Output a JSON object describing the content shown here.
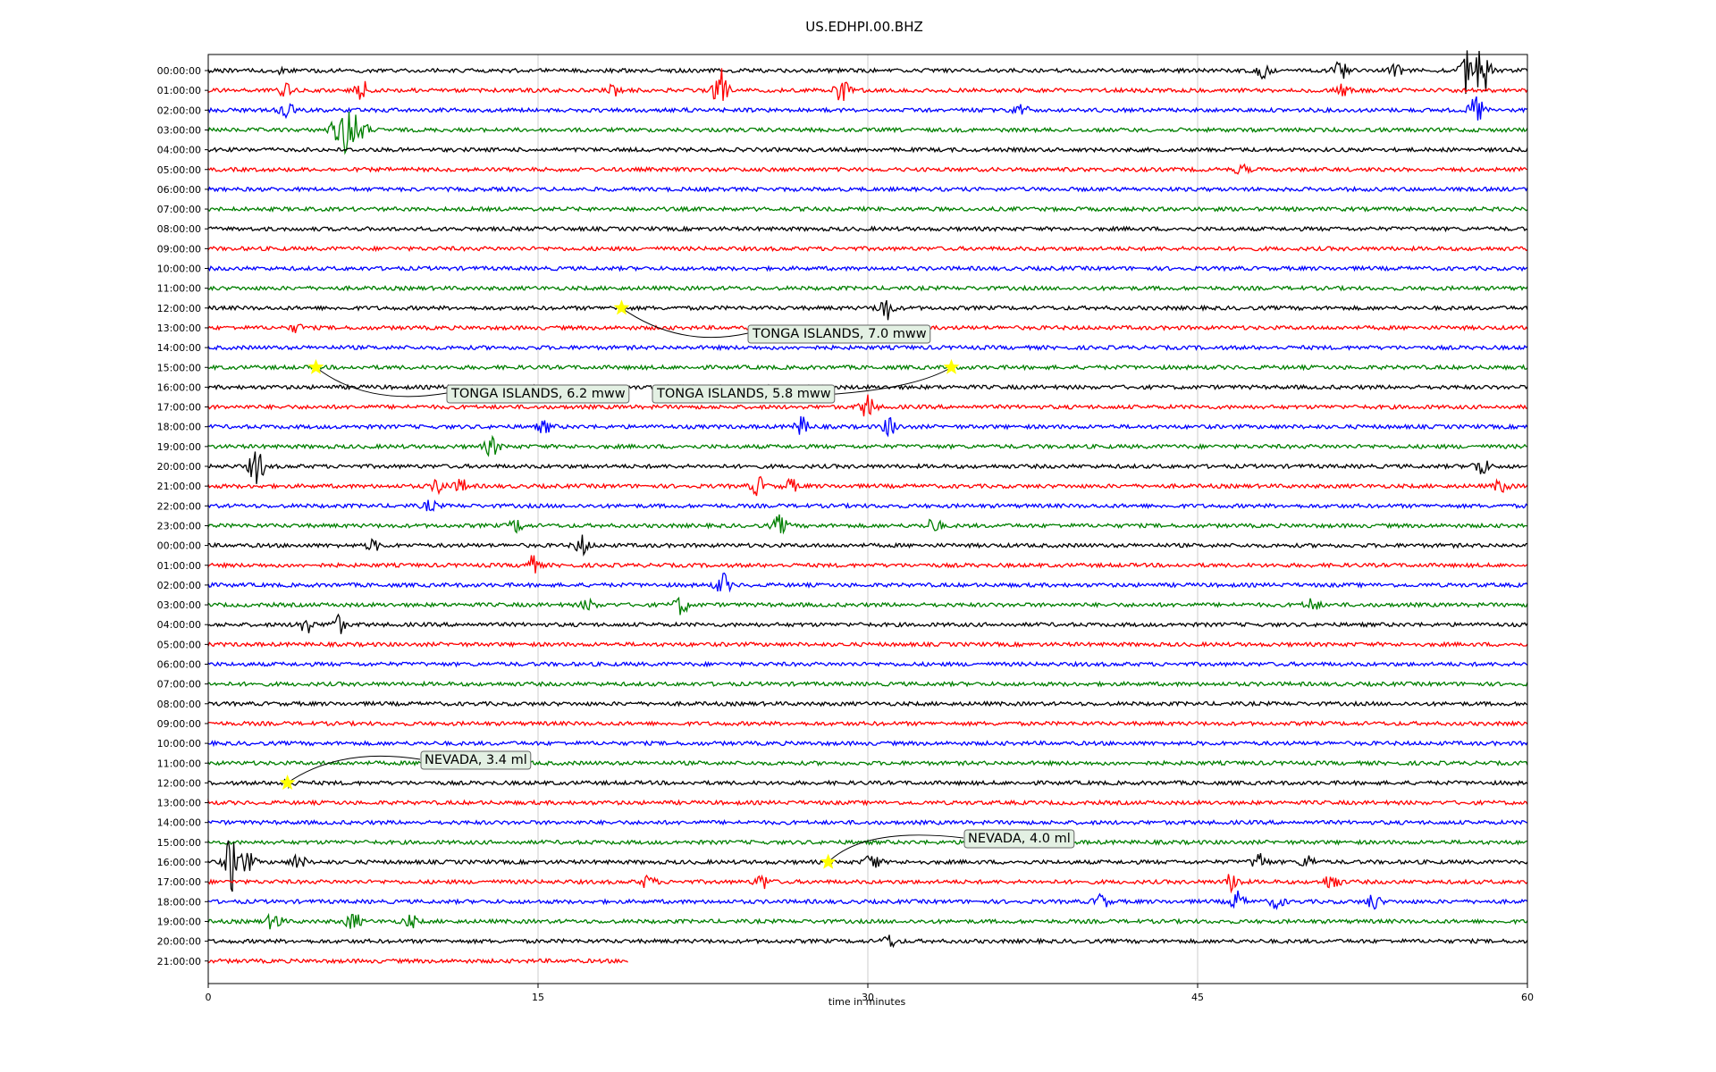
{
  "chart_data": {
    "type": "line",
    "title": "US.EDHPI.00.BHZ",
    "xlabel": "time in minutes",
    "ylabel": "",
    "xlim": [
      0,
      60
    ],
    "xticks": [
      0,
      15,
      30,
      45,
      60
    ],
    "grid": "vertical",
    "trace_colors": [
      "#000000",
      "#ff0000",
      "#0000ff",
      "#007f00"
    ],
    "rows": [
      "00:00:00",
      "01:00:00",
      "02:00:00",
      "03:00:00",
      "04:00:00",
      "05:00:00",
      "06:00:00",
      "07:00:00",
      "08:00:00",
      "09:00:00",
      "10:00:00",
      "11:00:00",
      "12:00:00",
      "13:00:00",
      "14:00:00",
      "15:00:00",
      "16:00:00",
      "17:00:00",
      "18:00:00",
      "19:00:00",
      "20:00:00",
      "21:00:00",
      "22:00:00",
      "23:00:00",
      "00:00:00",
      "01:00:00",
      "02:00:00",
      "03:00:00",
      "04:00:00",
      "05:00:00",
      "06:00:00",
      "07:00:00",
      "08:00:00",
      "09:00:00",
      "10:00:00",
      "11:00:00",
      "12:00:00",
      "13:00:00",
      "14:00:00",
      "15:00:00",
      "16:00:00",
      "17:00:00",
      "18:00:00",
      "19:00:00",
      "20:00:00",
      "21:00:00"
    ],
    "last_row_end_minutes": 19.1,
    "bursts": [
      [
        0,
        57.3,
        4
      ],
      [
        0,
        58.0,
        4
      ],
      [
        0,
        51.5,
        2
      ],
      [
        0,
        48.0,
        1.2
      ],
      [
        0,
        54.0,
        1
      ],
      [
        0,
        3.0,
        0.6
      ],
      [
        1,
        3.5,
        1
      ],
      [
        1,
        7.0,
        1.5
      ],
      [
        1,
        18.4,
        0.8
      ],
      [
        1,
        23.3,
        3.5
      ],
      [
        1,
        28.8,
        2
      ],
      [
        1,
        51.5,
        1.5
      ],
      [
        2,
        3.6,
        1.2
      ],
      [
        2,
        37.0,
        1
      ],
      [
        2,
        57.7,
        2.5
      ],
      [
        3,
        6.4,
        5
      ],
      [
        3,
        5.8,
        1.5
      ],
      [
        3,
        7.0,
        1.2
      ],
      [
        5,
        47.0,
        0.7
      ],
      [
        12,
        30.8,
        2
      ],
      [
        13,
        4.0,
        0.6
      ],
      [
        17,
        30.0,
        2
      ],
      [
        18,
        15.3,
        1
      ],
      [
        18,
        27.0,
        1.5
      ],
      [
        18,
        31.0,
        1.5
      ],
      [
        19,
        12.9,
        1.5
      ],
      [
        20,
        2.2,
        3
      ],
      [
        20,
        57.9,
        1.5
      ],
      [
        21,
        10.5,
        1.2
      ],
      [
        21,
        11.5,
        1
      ],
      [
        21,
        25.0,
        1.5
      ],
      [
        21,
        26.5,
        1
      ],
      [
        21,
        58.8,
        1
      ],
      [
        22,
        10.1,
        0.8
      ],
      [
        23,
        14.0,
        1
      ],
      [
        23,
        26.0,
        1.5
      ],
      [
        23,
        33.0,
        1.2
      ],
      [
        24,
        7.5,
        0.8
      ],
      [
        24,
        17.0,
        1.5
      ],
      [
        25,
        14.7,
        1.5
      ],
      [
        26,
        23.4,
        1.8
      ],
      [
        27,
        21.5,
        1.5
      ],
      [
        27,
        17.3,
        0.8
      ],
      [
        27,
        50.2,
        1
      ],
      [
        28,
        4.4,
        1.5
      ],
      [
        28,
        5.9,
        1.5
      ],
      [
        36,
        3.6,
        0.8
      ],
      [
        40,
        1.1,
        5
      ],
      [
        40,
        1.8,
        1.5
      ],
      [
        40,
        4.1,
        1.2
      ],
      [
        40,
        30.2,
        1.5
      ],
      [
        40,
        47.8,
        1.5
      ],
      [
        40,
        50.0,
        1
      ],
      [
        41,
        20.0,
        1
      ],
      [
        41,
        25.2,
        1.2
      ],
      [
        41,
        46.6,
        1.5
      ],
      [
        41,
        51.1,
        1.5
      ],
      [
        42,
        40.6,
        1.2
      ],
      [
        42,
        46.8,
        1.5
      ],
      [
        42,
        48.6,
        1
      ],
      [
        42,
        53.0,
        1.2
      ],
      [
        43,
        3.0,
        1.5
      ],
      [
        43,
        6.6,
        1.5
      ],
      [
        43,
        9.2,
        1
      ],
      [
        44,
        31.0,
        1
      ]
    ]
  },
  "annotations": [
    {
      "label": "TONGA ISLANDS, 7.0 mww",
      "row": 12,
      "minute": 18.8
    },
    {
      "label": "TONGA ISLANDS, 6.2 mww",
      "row": 15,
      "minute": 4.9
    },
    {
      "label": "TONGA ISLANDS, 5.8 mww",
      "row": 15,
      "minute": 33.8
    },
    {
      "label": "NEVADA, 3.4 ml",
      "row": 36,
      "minute": 3.6
    },
    {
      "label": "NEVADA, 4.0 ml",
      "row": 40,
      "minute": 28.2
    }
  ],
  "colors": {
    "star": "#ffff00",
    "gridline": "#cccccc",
    "label_box_fill": "#e3f0e3",
    "label_box_edge": "#666666"
  }
}
